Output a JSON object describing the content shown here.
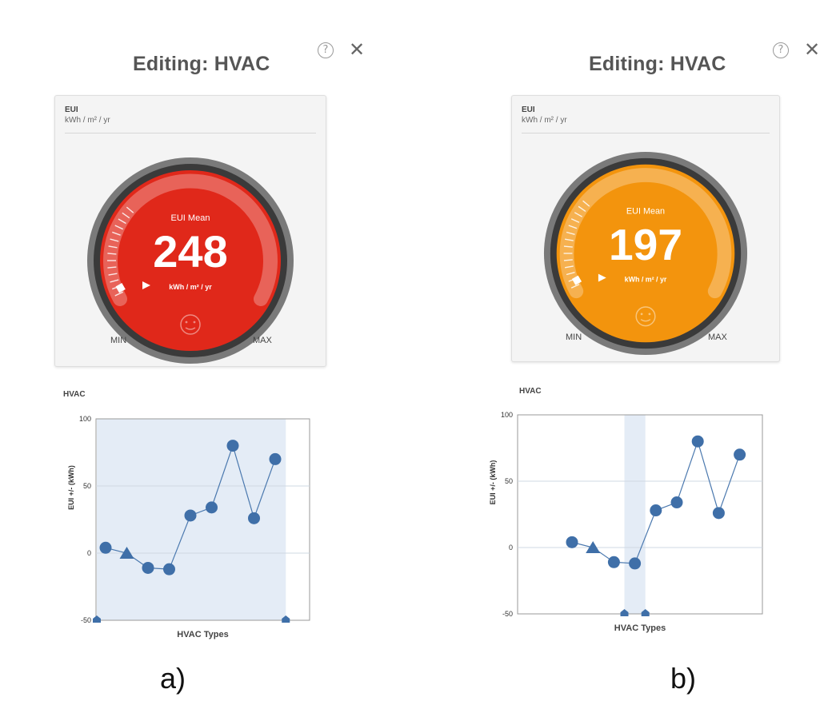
{
  "panels": [
    {
      "id": "a",
      "header": {
        "title": "Editing: HVAC",
        "help_glyph": "?",
        "close_glyph": "✕"
      },
      "gauge_card": {
        "metric_name": "EUI",
        "metric_unit": "kWh / m² / yr",
        "gauge_label": "EUI Mean",
        "value": "248",
        "value_unit": "kWh / m² / yr",
        "min_label": "MIN",
        "max_label": "MAX",
        "face_color": "#e0281a",
        "face_icon": "face-icon"
      },
      "chart_title": "HVAC",
      "caption": "a)",
      "chart_data": {
        "type": "line",
        "ylabel": "EUI +/- (kWh)",
        "xlabel": "HVAC Types",
        "ylim": [
          -50,
          100
        ],
        "y_ticks": [
          "100",
          "50",
          "0",
          "-50"
        ],
        "y_tick_values": [
          100,
          50,
          0,
          -50
        ],
        "series": [
          {
            "values": [
              4,
              0,
              -11,
              -12,
              28,
              34,
              80,
              26,
              70
            ],
            "markers": [
              "circle",
              "triangle",
              "circle",
              "circle",
              "circle",
              "circle",
              "circle",
              "circle",
              "circle"
            ]
          }
        ],
        "selection_range": [
          0,
          9
        ]
      }
    },
    {
      "id": "b",
      "header": {
        "title": "Editing: HVAC",
        "help_glyph": "?",
        "close_glyph": "✕"
      },
      "gauge_card": {
        "metric_name": "EUI",
        "metric_unit": "kWh / m² / yr",
        "gauge_label": "EUI Mean",
        "value": "197",
        "value_unit": "kWh / m² / yr",
        "min_label": "MIN",
        "max_label": "MAX",
        "face_color": "#f3940d",
        "face_icon": "face-icon"
      },
      "chart_title": "HVAC",
      "caption": "b)",
      "chart_data": {
        "type": "line",
        "ylabel": "EUI +/- (kWh)",
        "xlabel": "HVAC Types",
        "ylim": [
          -50,
          100
        ],
        "y_ticks": [
          "100",
          "50",
          "0",
          "-50"
        ],
        "y_tick_values": [
          100,
          50,
          0,
          -50
        ],
        "series": [
          {
            "values": [
              4,
              0,
              -11,
              -12,
              28,
              34,
              80,
              26,
              70
            ],
            "markers": [
              "circle",
              "triangle",
              "circle",
              "circle",
              "circle",
              "circle",
              "circle",
              "circle",
              "circle"
            ]
          }
        ],
        "selection_range": [
          3,
          4
        ]
      }
    }
  ]
}
